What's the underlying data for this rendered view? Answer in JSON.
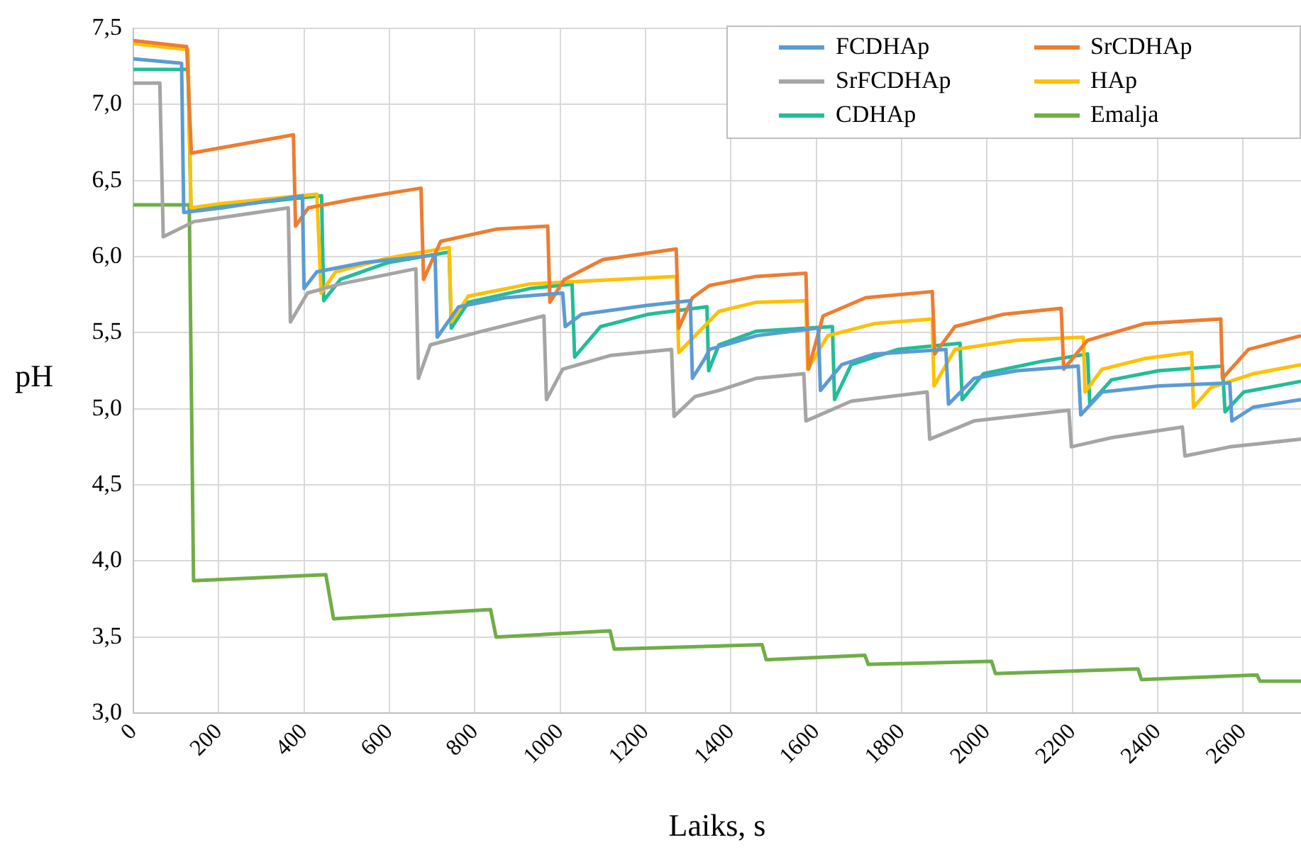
{
  "chart_data": {
    "type": "line",
    "xlabel": "Laiks, s",
    "ylabel": "pH",
    "xlim": [
      0,
      2736
    ],
    "xticks": [
      0,
      200,
      400,
      600,
      800,
      1000,
      1200,
      1400,
      1600,
      1800,
      2000,
      2200,
      2400,
      2600
    ],
    "ylim": [
      3,
      7.5
    ],
    "yticks": [
      {
        "value": 3,
        "label": "3,0"
      },
      {
        "value": 3.5,
        "label": "3,5"
      },
      {
        "value": 4,
        "label": "4,0"
      },
      {
        "value": 4.5,
        "label": "4,5"
      },
      {
        "value": 5,
        "label": "5,0"
      },
      {
        "value": 5.5,
        "label": "5,5"
      },
      {
        "value": 6,
        "label": "6,0"
      },
      {
        "value": 6.5,
        "label": "6,5"
      },
      {
        "value": 7,
        "label": "7,0"
      },
      {
        "value": 7.5,
        "label": "7,5"
      }
    ],
    "grid": true,
    "legend": "top right",
    "marker": "none",
    "series": [
      {
        "name": "FCDHAp",
        "color": "#5b9bd5",
        "x": [
          0,
          113,
          118,
          208,
          396,
          400,
          430,
          540,
          707,
          712,
          762,
          872,
          1006,
          1012,
          1050,
          1205,
          1305,
          1310,
          1339,
          1350,
          1460,
          1605,
          1610,
          1660,
          1737,
          1904,
          1910,
          1970,
          2070,
          2214,
          2220,
          2270,
          2403,
          2569,
          2574,
          2624,
          2736
        ],
        "values": [
          7.3,
          7.27,
          6.29,
          6.32,
          6.4,
          5.79,
          5.9,
          5.96,
          6.01,
          5.47,
          5.67,
          5.73,
          5.76,
          5.54,
          5.62,
          5.68,
          5.71,
          5.2,
          5.33,
          5.39,
          5.48,
          5.53,
          5.12,
          5.29,
          5.36,
          5.39,
          5.03,
          5.2,
          5.25,
          5.28,
          4.96,
          5.11,
          5.15,
          5.17,
          4.92,
          5.01,
          5.06
        ]
      },
      {
        "name": "SrCDHAp",
        "color": "#ed7d31",
        "x": [
          0,
          125,
          136,
          375,
          380,
          410,
          520,
          674,
          680,
          720,
          850,
          971,
          976,
          1010,
          1100,
          1272,
          1278,
          1310,
          1350,
          1460,
          1576,
          1582,
          1616,
          1716,
          1872,
          1878,
          1925,
          2037,
          2174,
          2180,
          2236,
          2370,
          2548,
          2552,
          2613,
          2736
        ],
        "values": [
          7.42,
          7.38,
          6.68,
          6.8,
          6.2,
          6.32,
          6.38,
          6.45,
          5.85,
          6.1,
          6.18,
          6.2,
          5.7,
          5.85,
          5.98,
          6.05,
          5.53,
          5.73,
          5.81,
          5.87,
          5.89,
          5.26,
          5.61,
          5.73,
          5.77,
          5.36,
          5.54,
          5.62,
          5.66,
          5.26,
          5.45,
          5.56,
          5.59,
          5.2,
          5.39,
          5.48
        ]
      },
      {
        "name": "SrFCDHAp",
        "color": "#a5a5a5",
        "x": [
          0,
          62,
          70,
          142,
          215,
          363,
          368,
          408,
          485,
          662,
          668,
          696,
          818,
          962,
          968,
          1006,
          1117,
          1261,
          1267,
          1316,
          1372,
          1460,
          1571,
          1576,
          1682,
          1860,
          1866,
          1970,
          2192,
          2198,
          2292,
          2458,
          2464,
          2570,
          2736
        ],
        "values": [
          7.14,
          7.14,
          6.13,
          6.23,
          6.26,
          6.32,
          5.57,
          5.76,
          5.82,
          5.92,
          5.2,
          5.42,
          5.51,
          5.61,
          5.06,
          5.26,
          5.35,
          5.39,
          4.95,
          5.08,
          5.12,
          5.2,
          5.23,
          4.92,
          5.05,
          5.11,
          4.8,
          4.92,
          4.99,
          4.75,
          4.81,
          4.88,
          4.69,
          4.75,
          4.8
        ]
      },
      {
        "name": "HAp",
        "color": "#ffc000",
        "x": [
          0,
          128,
          135,
          208,
          430,
          440,
          474,
          596,
          740,
          745,
          785,
          929,
          1272,
          1278,
          1372,
          1460,
          1576,
          1580,
          1627,
          1737,
          1872,
          1876,
          1925,
          2070,
          2226,
          2230,
          2270,
          2370,
          2480,
          2484,
          2525,
          2624,
          2736
        ],
        "values": [
          7.4,
          7.36,
          6.32,
          6.35,
          6.41,
          5.76,
          5.9,
          5.99,
          6.06,
          5.57,
          5.74,
          5.82,
          5.87,
          5.37,
          5.64,
          5.7,
          5.71,
          5.26,
          5.48,
          5.56,
          5.59,
          5.15,
          5.39,
          5.45,
          5.47,
          5.11,
          5.26,
          5.33,
          5.37,
          5.01,
          5.14,
          5.23,
          5.29
        ]
      },
      {
        "name": "CDHAp",
        "color": "#21bd98",
        "x": [
          0,
          128,
          135,
          208,
          441,
          446,
          485,
          596,
          740,
          745,
          785,
          929,
          1028,
          1034,
          1095,
          1205,
          1344,
          1348,
          1372,
          1460,
          1638,
          1643,
          1682,
          1792,
          1937,
          1942,
          1992,
          2126,
          2236,
          2241,
          2292,
          2403,
          2552,
          2558,
          2602,
          2736
        ],
        "values": [
          7.23,
          7.23,
          6.32,
          6.33,
          6.4,
          5.71,
          5.85,
          5.96,
          6.03,
          5.53,
          5.7,
          5.79,
          5.82,
          5.34,
          5.54,
          5.62,
          5.67,
          5.25,
          5.42,
          5.51,
          5.54,
          5.06,
          5.29,
          5.39,
          5.43,
          5.06,
          5.23,
          5.31,
          5.36,
          5.03,
          5.19,
          5.25,
          5.28,
          4.98,
          5.11,
          5.18
        ]
      },
      {
        "name": "Emalja",
        "color": "#70ad47",
        "x": [
          0,
          131,
          141,
          451,
          469,
          837,
          850,
          1117,
          1127,
          1473,
          1483,
          1714,
          1722,
          2011,
          2020,
          2354,
          2362,
          2633,
          2640,
          2736
        ],
        "values": [
          6.34,
          6.34,
          3.87,
          3.91,
          3.62,
          3.68,
          3.5,
          3.54,
          3.42,
          3.45,
          3.35,
          3.38,
          3.32,
          3.34,
          3.26,
          3.29,
          3.22,
          3.25,
          3.21,
          3.21
        ]
      }
    ]
  }
}
